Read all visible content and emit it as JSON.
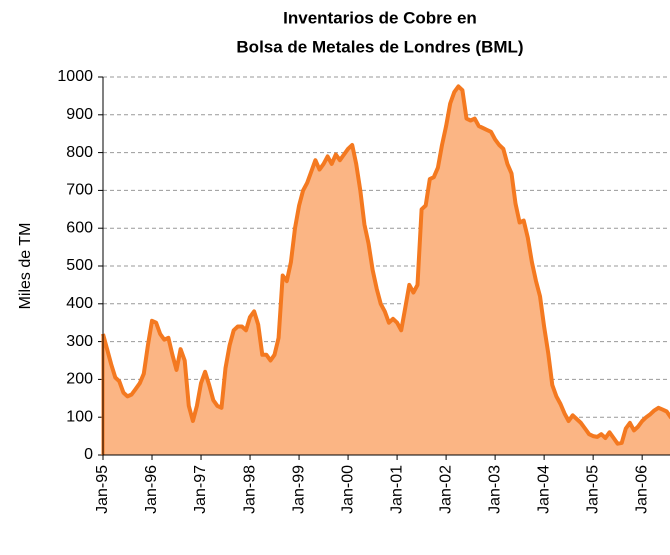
{
  "chart_data": {
    "type": "area",
    "title": [
      "Inventarios de Cobre en",
      "Bolsa de Metales de Londres (BML)"
    ],
    "y_label": "Miles de TM",
    "categories": [
      "Jan-95",
      null,
      null,
      null,
      null,
      null,
      null,
      null,
      null,
      null,
      null,
      null,
      "Jan-96",
      null,
      null,
      null,
      null,
      null,
      null,
      null,
      null,
      null,
      null,
      null,
      "Jan-97",
      null,
      null,
      null,
      null,
      null,
      null,
      null,
      null,
      null,
      null,
      null,
      "Jan-98",
      null,
      null,
      null,
      null,
      null,
      null,
      null,
      null,
      null,
      null,
      null,
      "Jan-99",
      null,
      null,
      null,
      null,
      null,
      null,
      null,
      null,
      null,
      null,
      null,
      "Jan-00",
      null,
      null,
      null,
      null,
      null,
      null,
      null,
      null,
      null,
      null,
      null,
      "Jan-01",
      null,
      null,
      null,
      null,
      null,
      null,
      null,
      null,
      null,
      null,
      null,
      "Jan-02",
      null,
      null,
      null,
      null,
      null,
      null,
      null,
      null,
      null,
      null,
      null,
      "Jan-03",
      null,
      null,
      null,
      null,
      null,
      null,
      null,
      null,
      null,
      null,
      null,
      "Jan-04",
      null,
      null,
      null,
      null,
      null,
      null,
      null,
      null,
      null,
      null,
      null,
      "Jan-05",
      null,
      null,
      null,
      null,
      null,
      null,
      null,
      null,
      null,
      null,
      null,
      "Jan-06",
      null,
      null,
      null,
      null,
      null,
      null,
      null,
      null,
      null,
      null
    ],
    "values": [
      320,
      280,
      240,
      205,
      195,
      165,
      155,
      160,
      175,
      190,
      215,
      290,
      355,
      350,
      320,
      305,
      310,
      265,
      225,
      280,
      250,
      130,
      90,
      130,
      190,
      220,
      185,
      145,
      130,
      125,
      230,
      290,
      330,
      340,
      340,
      330,
      365,
      380,
      345,
      265,
      265,
      250,
      265,
      310,
      475,
      460,
      510,
      600,
      660,
      700,
      720,
      750,
      780,
      755,
      770,
      790,
      770,
      795,
      780,
      795,
      810,
      820,
      770,
      700,
      610,
      560,
      490,
      440,
      400,
      380,
      350,
      360,
      350,
      330,
      390,
      450,
      430,
      450,
      650,
      660,
      730,
      735,
      760,
      820,
      870,
      930,
      960,
      975,
      965,
      890,
      885,
      890,
      870,
      865,
      860,
      855,
      835,
      820,
      810,
      770,
      745,
      665,
      615,
      620,
      575,
      510,
      460,
      420,
      340,
      270,
      185,
      155,
      135,
      110,
      90,
      105,
      95,
      85,
      70,
      55,
      50,
      48,
      55,
      45,
      60,
      45,
      30,
      32,
      70,
      85,
      65,
      75,
      90,
      100,
      108,
      118,
      125,
      120,
      115,
      100,
      105,
      130,
      120
    ],
    "color": "#f47920",
    "fill": "#fbb584",
    "ylim": [
      0,
      1000
    ],
    "yticks": [
      0,
      100,
      200,
      300,
      400,
      500,
      600,
      700,
      800,
      900,
      1000
    ],
    "grid": true
  }
}
